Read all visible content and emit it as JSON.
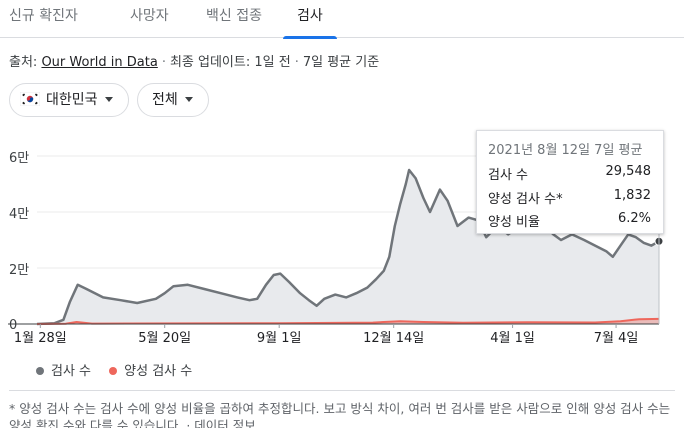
{
  "tabs": [
    {
      "label": "신규 확진자",
      "active": false
    },
    {
      "label": "사망자",
      "active": false
    },
    {
      "label": "백신 접종",
      "active": false
    },
    {
      "label": "검사",
      "active": true
    }
  ],
  "source": {
    "prefix": "출처:",
    "link": "Our World in Data",
    "updated": "최종 업데이트: 1일 전",
    "basis": "7일 평균 기준"
  },
  "filters": {
    "country": "대한민국",
    "country_flag_icon": "south-korea-flag-icon",
    "range": "전체"
  },
  "tooltip": {
    "title": "2021년 8월 12일 7일 평균",
    "rows": [
      {
        "label": "검사 수",
        "value": "29,548"
      },
      {
        "label": "양성 검사 수*",
        "value": "1,832"
      },
      {
        "label": "양성 비율",
        "value": "6.2%"
      }
    ]
  },
  "legend": {
    "tests": "검사 수",
    "positive": "양성 검사 수"
  },
  "footnote": "* 양성 검사 수는 검사 수에 양성 비율을 곱하여 추정합니다. 보고 방식 차이, 여러 번 검사를 받은 사람으로 인해 양성 검사 수는 양성 확진 수와 다를 수 있습니다. · 데이터 정보",
  "chart_data": {
    "type": "area",
    "y_tick_labels": [
      "0",
      "2만",
      "4만",
      "6만"
    ],
    "y_ticks": [
      0,
      20000,
      40000,
      60000
    ],
    "ylim": [
      0,
      62000
    ],
    "xlim": [
      "2020-01-25",
      "2021-08-12"
    ],
    "x_tick_labels": [
      {
        "date": "2020-01-28",
        "label": "1월 28일"
      },
      {
        "date": "2020-05-20",
        "label": "5월 20일"
      },
      {
        "date": "2020-09-01",
        "label": "9월 1일"
      },
      {
        "date": "2020-12-14",
        "label": "12월 14일"
      },
      {
        "date": "2021-04-01",
        "label": "4월 1일"
      },
      {
        "date": "2021-07-04",
        "label": "7월 4일"
      }
    ],
    "colors": {
      "tests": "#70757a",
      "tests_fill": "#e8eaed",
      "positive": "#ee675c"
    },
    "series": [
      {
        "name": "검사 수",
        "points": [
          [
            "2020-01-25",
            0
          ],
          [
            "2020-02-10",
            300
          ],
          [
            "2020-02-18",
            1500
          ],
          [
            "2020-02-24",
            8000
          ],
          [
            "2020-03-02",
            14000
          ],
          [
            "2020-03-10",
            12500
          ],
          [
            "2020-03-25",
            9500
          ],
          [
            "2020-04-10",
            8500
          ],
          [
            "2020-04-25",
            7500
          ],
          [
            "2020-05-12",
            9000
          ],
          [
            "2020-05-20",
            11000
          ],
          [
            "2020-05-28",
            13500
          ],
          [
            "2020-06-10",
            14000
          ],
          [
            "2020-06-25",
            12500
          ],
          [
            "2020-07-10",
            11000
          ],
          [
            "2020-07-25",
            9500
          ],
          [
            "2020-08-05",
            8500
          ],
          [
            "2020-08-12",
            9000
          ],
          [
            "2020-08-20",
            14000
          ],
          [
            "2020-08-27",
            17500
          ],
          [
            "2020-09-02",
            18000
          ],
          [
            "2020-09-10",
            15000
          ],
          [
            "2020-09-20",
            11000
          ],
          [
            "2020-09-28",
            8500
          ],
          [
            "2020-10-05",
            6500
          ],
          [
            "2020-10-12",
            9000
          ],
          [
            "2020-10-22",
            10500
          ],
          [
            "2020-11-01",
            9500
          ],
          [
            "2020-11-10",
            11000
          ],
          [
            "2020-11-20",
            13000
          ],
          [
            "2020-11-28",
            16000
          ],
          [
            "2020-12-05",
            19000
          ],
          [
            "2020-12-10",
            24000
          ],
          [
            "2020-12-15",
            35000
          ],
          [
            "2020-12-20",
            43000
          ],
          [
            "2020-12-25",
            50000
          ],
          [
            "2020-12-28",
            55000
          ],
          [
            "2021-01-03",
            52000
          ],
          [
            "2021-01-10",
            45000
          ],
          [
            "2021-01-16",
            40000
          ],
          [
            "2021-01-25",
            48000
          ],
          [
            "2021-02-01",
            44000
          ],
          [
            "2021-02-10",
            35000
          ],
          [
            "2021-02-20",
            38000
          ],
          [
            "2021-03-01",
            37000
          ],
          [
            "2021-03-08",
            31000
          ],
          [
            "2021-03-18",
            35000
          ],
          [
            "2021-03-28",
            32000
          ],
          [
            "2021-04-08",
            35000
          ],
          [
            "2021-04-18",
            39000
          ],
          [
            "2021-04-28",
            36000
          ],
          [
            "2021-05-08",
            32000
          ],
          [
            "2021-05-15",
            30000
          ],
          [
            "2021-05-25",
            32000
          ],
          [
            "2021-06-05",
            30000
          ],
          [
            "2021-06-15",
            28000
          ],
          [
            "2021-06-25",
            26000
          ],
          [
            "2021-07-01",
            24000
          ],
          [
            "2021-07-08",
            28000
          ],
          [
            "2021-07-15",
            32000
          ],
          [
            "2021-07-22",
            31000
          ],
          [
            "2021-07-29",
            29000
          ],
          [
            "2021-08-05",
            28000
          ],
          [
            "2021-08-12",
            29548
          ]
        ]
      },
      {
        "name": "양성 검사 수",
        "points": [
          [
            "2020-01-25",
            0
          ],
          [
            "2020-02-20",
            100
          ],
          [
            "2020-03-01",
            700
          ],
          [
            "2020-03-15",
            150
          ],
          [
            "2020-08-20",
            300
          ],
          [
            "2020-09-01",
            250
          ],
          [
            "2020-11-25",
            500
          ],
          [
            "2020-12-20",
            1000
          ],
          [
            "2021-01-10",
            700
          ],
          [
            "2021-02-15",
            450
          ],
          [
            "2021-04-15",
            650
          ],
          [
            "2021-06-15",
            550
          ],
          [
            "2021-07-08",
            1000
          ],
          [
            "2021-07-25",
            1700
          ],
          [
            "2021-08-12",
            1832
          ]
        ]
      }
    ]
  }
}
